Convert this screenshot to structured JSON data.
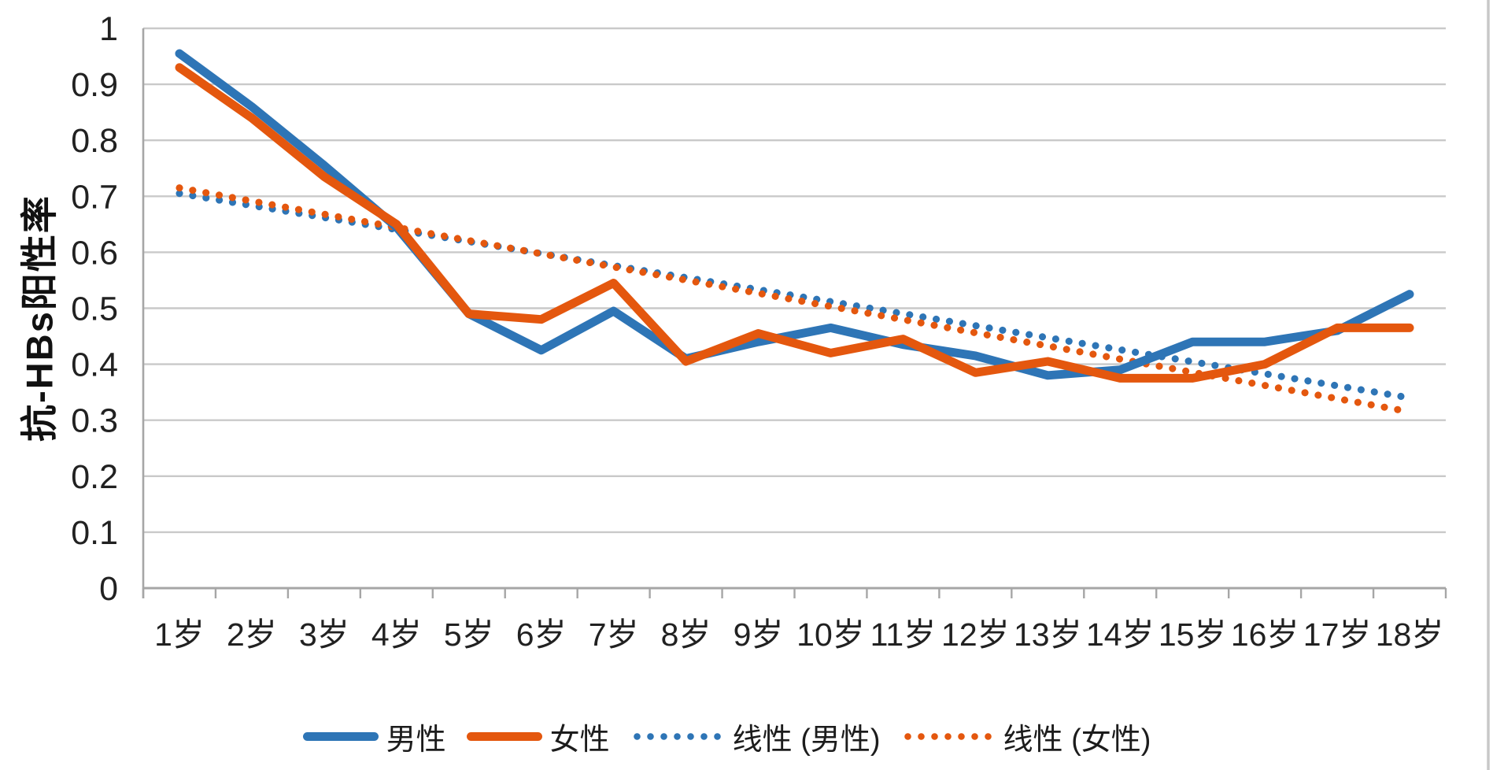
{
  "chart_data": {
    "type": "line",
    "title": "",
    "xlabel": "",
    "ylabel": "抗-HBs阳性率",
    "grid": true,
    "legend_position": "bottom",
    "categories": [
      "1岁",
      "2岁",
      "3岁",
      "4岁",
      "5岁",
      "6岁",
      "7岁",
      "8岁",
      "9岁",
      "10岁",
      "11岁",
      "12岁",
      "13岁",
      "14岁",
      "15岁",
      "16岁",
      "17岁",
      "18岁"
    ],
    "y_axis": {
      "min": 0,
      "max": 1,
      "step": 0.1,
      "tick_labels": [
        "1",
        "0.9",
        "0.8",
        "0.7",
        "0.6",
        "0.5",
        "0.4",
        "0.3",
        "0.2",
        "0.1",
        "0"
      ]
    },
    "series": [
      {
        "key": "male",
        "name": "男性",
        "style": "solid",
        "color": "#2E75B6",
        "values": [
          0.955,
          0.86,
          0.755,
          0.645,
          0.49,
          0.425,
          0.495,
          0.41,
          0.44,
          0.465,
          0.435,
          0.415,
          0.38,
          0.39,
          0.44,
          0.44,
          0.46,
          0.525
        ]
      },
      {
        "key": "female",
        "name": "女性",
        "style": "solid",
        "color": "#E4570E",
        "values": [
          0.93,
          0.84,
          0.735,
          0.65,
          0.49,
          0.48,
          0.545,
          0.405,
          0.455,
          0.42,
          0.445,
          0.385,
          0.405,
          0.375,
          0.375,
          0.4,
          0.465,
          0.465
        ]
      },
      {
        "key": "male",
        "name": "线性 (男性)",
        "style": "dotted",
        "color": "#2E75B6",
        "trend_start": 0.705,
        "trend_end": 0.34
      },
      {
        "key": "female",
        "name": "线性 (女性)",
        "style": "dotted",
        "color": "#E4570E",
        "trend_start": 0.715,
        "trend_end": 0.315
      }
    ],
    "colors": {
      "gridline": "#C9C9C9",
      "axis": "#A6A6A6",
      "border": "#C8C8C8",
      "tick_text": "#212121"
    }
  }
}
